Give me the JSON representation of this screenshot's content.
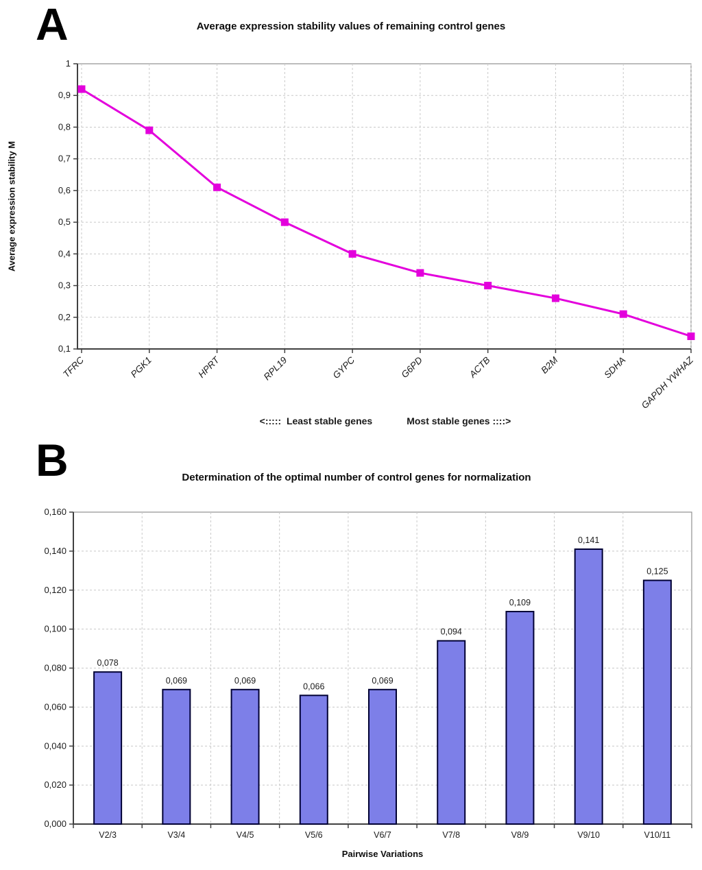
{
  "figure": {
    "background_color": "#ffffff",
    "panels": [
      {
        "label": "A"
      },
      {
        "label": "B"
      }
    ]
  },
  "colors": {
    "line": "#e300dc",
    "marker": "#e300dc",
    "bar_fill": "#7d7fe8",
    "bar_border": "#000033",
    "gridline": "#c8c8c8",
    "axis": "#404040",
    "plot_border": "#909090",
    "text": "#1a1a1a"
  },
  "chart_data": [
    {
      "type": "line",
      "panel": "A",
      "title": "Average expression stability values of remaining control genes",
      "ylabel": "Average expression stability M",
      "xlabel": "",
      "categories": [
        "TFRC",
        "PGK1",
        "HPRT",
        "RPL19",
        "GYPC",
        "G6PD",
        "ACTB",
        "B2M",
        "SDHA",
        "GAPDH YWHAZ"
      ],
      "values": [
        0.92,
        0.79,
        0.61,
        0.5,
        0.4,
        0.34,
        0.3,
        0.26,
        0.21,
        0.14
      ],
      "ylim": [
        0.1,
        1.0
      ],
      "ytick_step": 0.1,
      "ytick_labels": [
        "1",
        "0,9",
        "0,8",
        "0,7",
        "0,6",
        "0,5",
        "0,4",
        "0,3",
        "0,2",
        "0,1"
      ],
      "grid": true,
      "legend": "none",
      "marker": "filled-square",
      "annotation_left": "<:::::  Least stable genes",
      "annotation_right": "Most stable genes ::::>"
    },
    {
      "type": "bar",
      "panel": "B",
      "title": "Determination of the optimal number of control genes for normalization",
      "xlabel": "Pairwise Variations",
      "ylabel": "",
      "categories": [
        "V2/3",
        "V3/4",
        "V4/5",
        "V5/6",
        "V6/7",
        "V7/8",
        "V8/9",
        "V9/10",
        "V10/11"
      ],
      "values": [
        0.078,
        0.069,
        0.069,
        0.066,
        0.069,
        0.094,
        0.109,
        0.141,
        0.125
      ],
      "value_labels": [
        "0,078",
        "0,069",
        "0,069",
        "0,066",
        "0,069",
        "0,094",
        "0,109",
        "0,141",
        "0,125"
      ],
      "ylim": [
        0,
        0.16
      ],
      "ytick_step": 0.02,
      "ytick_labels": [
        "0,160",
        "0,140",
        "0,120",
        "0,100",
        "0,080",
        "0,060",
        "0,040",
        "0,020",
        "0,000"
      ],
      "grid": true,
      "legend": "none"
    }
  ]
}
